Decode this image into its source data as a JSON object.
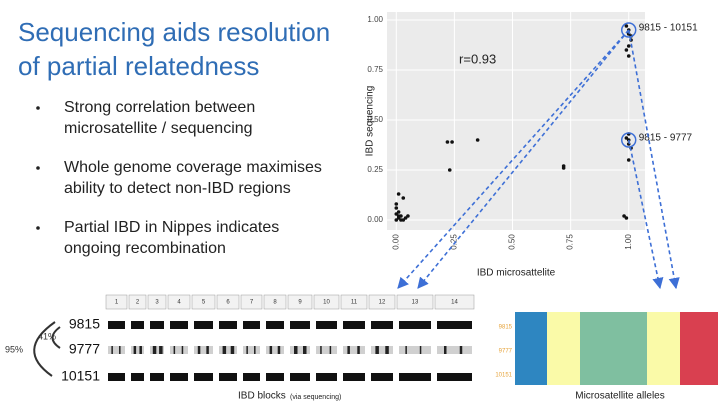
{
  "title_lines": [
    "Sequencing aids resolution",
    "of partial relatedness"
  ],
  "bullets": [
    [
      "Strong correlation between",
      "microsatellite / sequencing"
    ],
    [
      "Whole genome coverage maximises",
      "ability to detect non-IBD regions"
    ],
    [
      "Partial IBD in Nippes indicates",
      "ongoing recombination"
    ]
  ],
  "chart_data": {
    "type": "scatter",
    "x_label": "IBD microsattelite",
    "y_label": "IBD sequencing",
    "x": [
      0.0,
      0.01,
      0.02,
      0.03,
      0.04,
      0.05,
      0.0,
      0.01,
      0.02,
      0.0,
      0.01,
      0.03,
      0.0,
      0.01,
      0.22,
      0.24,
      0.23,
      0.35,
      0.72,
      0.72,
      0.99,
      1.0,
      1.0,
      1.01,
      1.0,
      0.99,
      1.0,
      1.01,
      1.0,
      0.99,
      1.0,
      1.0,
      1.01,
      1.0,
      0.98,
      0.99
    ],
    "y": [
      0.0,
      0.01,
      0.02,
      0.0,
      0.01,
      0.02,
      0.03,
      0.04,
      0.0,
      0.08,
      0.13,
      0.11,
      0.06,
      0.02,
      0.39,
      0.39,
      0.25,
      0.4,
      0.27,
      0.26,
      0.97,
      0.95,
      0.93,
      0.9,
      0.87,
      0.85,
      0.82,
      0.92,
      0.43,
      0.41,
      0.4,
      0.38,
      0.36,
      0.3,
      0.02,
      0.01
    ],
    "color": "#111111",
    "xlim": [
      -0.04,
      1.07
    ],
    "ylim": [
      -0.05,
      1.04
    ],
    "xticks": [
      {
        "value": 0,
        "label": "0.00"
      },
      {
        "value": 0.25,
        "label": "0.25"
      },
      {
        "value": 0.5,
        "label": "0.50"
      },
      {
        "value": 0.75,
        "label": "0.75"
      },
      {
        "value": 1,
        "label": "1.00"
      }
    ],
    "yticks": [
      {
        "value": 0,
        "label": "0.00"
      },
      {
        "value": 0.25,
        "label": "0.25"
      },
      {
        "value": 0.5,
        "label": "0.50"
      },
      {
        "value": 0.75,
        "label": "0.75"
      },
      {
        "value": 1,
        "label": "1.00"
      }
    ],
    "grid": true,
    "annotations": [
      {
        "text": "r=0.93",
        "x": 0.27,
        "y": 0.8
      },
      {
        "text": "9815 - 10151",
        "x": 1.0,
        "y": 0.95
      },
      {
        "text": "9815 - 9777",
        "x": 1.0,
        "y": 0.4
      }
    ]
  },
  "ibd_panel": {
    "chromosomes": [
      "1",
      "2",
      "3",
      "4",
      "5",
      "6",
      "7",
      "8",
      "9",
      "10",
      "11",
      "12",
      "13",
      "14"
    ],
    "samples": [
      "9815",
      "9777",
      "10151"
    ],
    "relatedness": [
      "41%",
      "95%"
    ],
    "caption": "IBD blocks",
    "caption_note": "(via sequencing)"
  },
  "microsatellite_panel": {
    "caption": "Microsatellite alleles",
    "colors": [
      "#2e86c1",
      "#fafaa8",
      "#7fbfa0",
      "#fafaa8",
      "#d94050"
    ]
  }
}
